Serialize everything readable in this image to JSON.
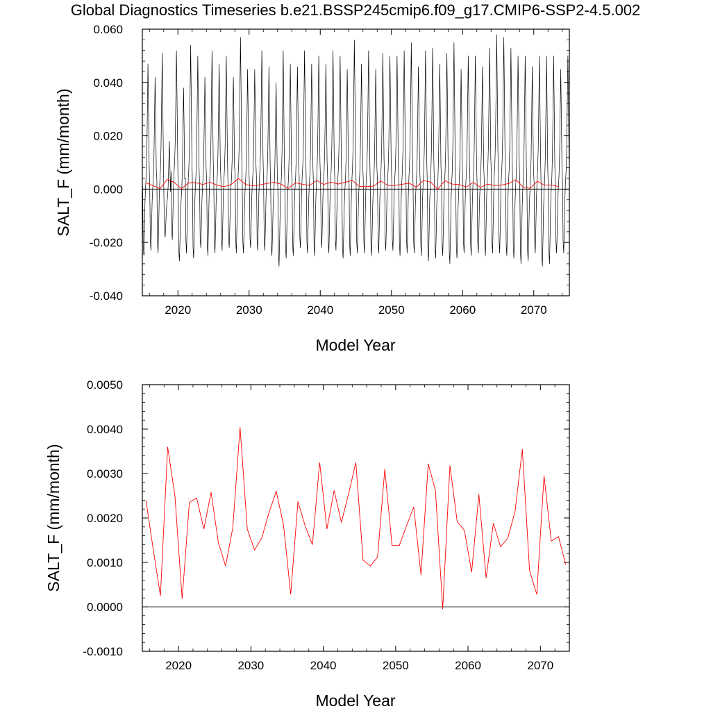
{
  "title": "Global Diagnostics Timeseries b.e21.BSSP245cmip6.f09_g17.CMIP6-SSP2-4.5.002",
  "colors": {
    "monthly": "#000000",
    "annual": "#ff0000",
    "zero_line": "#000000"
  },
  "chart_data": [
    {
      "type": "line",
      "xlabel": "Model Year",
      "ylabel": "SALT_F (mm/month)",
      "xlim": [
        2015,
        2075
      ],
      "ylim": [
        -0.04,
        0.06
      ],
      "xticks": [
        2020,
        2030,
        2040,
        2050,
        2060,
        2070
      ],
      "xtick_labels": [
        "2020",
        "2030",
        "2040",
        "2050",
        "2060",
        "2070"
      ],
      "yticks": [
        -0.04,
        -0.02,
        0.0,
        0.02,
        0.04,
        0.06
      ],
      "ytick_labels": [
        "-0.040",
        "-0.020",
        "0.000",
        "0.020",
        "0.040",
        "0.060"
      ],
      "monthly_series": {
        "start_year": 2015,
        "months_per_year": 12,
        "seasonal_cycle": [
          0.002,
          -0.02,
          -0.024,
          -0.015,
          -0.004,
          0.002,
          0.006,
          0.014,
          0.03,
          0.048,
          0.03,
          0.01
        ],
        "yearly_peaks": [
          0.047,
          0.042,
          0.051,
          0.018,
          0.052,
          0.038,
          0.054,
          0.05,
          0.042,
          0.052,
          0.047,
          0.05,
          0.042,
          0.057,
          0.045,
          0.045,
          0.052,
          0.046,
          0.04,
          0.052,
          0.047,
          0.046,
          0.052,
          0.047,
          0.05,
          0.047,
          0.052,
          0.05,
          0.045,
          0.056,
          0.047,
          0.052,
          0.045,
          0.051,
          0.05,
          0.05,
          0.052,
          0.055,
          0.046,
          0.052,
          0.053,
          0.047,
          0.051,
          0.055,
          0.045,
          0.05,
          0.05,
          0.046,
          0.053,
          0.058,
          0.057,
          0.053,
          0.05,
          0.05,
          0.046,
          0.05,
          0.05,
          0.05,
          0.045,
          0.05
        ],
        "yearly_troughs": [
          -0.025,
          -0.023,
          -0.024,
          -0.018,
          -0.019,
          -0.027,
          -0.024,
          -0.026,
          -0.022,
          -0.025,
          -0.024,
          -0.023,
          -0.022,
          -0.024,
          -0.024,
          -0.022,
          -0.023,
          -0.023,
          -0.025,
          -0.029,
          -0.026,
          -0.025,
          -0.022,
          -0.024,
          -0.025,
          -0.022,
          -0.024,
          -0.023,
          -0.026,
          -0.025,
          -0.024,
          -0.024,
          -0.025,
          -0.024,
          -0.023,
          -0.023,
          -0.025,
          -0.024,
          -0.024,
          -0.025,
          -0.027,
          -0.026,
          -0.025,
          -0.028,
          -0.026,
          -0.024,
          -0.025,
          -0.024,
          -0.025,
          -0.024,
          -0.024,
          -0.025,
          -0.026,
          -0.028,
          -0.027,
          -0.024,
          -0.029,
          -0.028,
          -0.024,
          -0.024
        ]
      },
      "annual_series": {
        "x": [
          2015.5,
          2016.5,
          2017.5,
          2018.5,
          2019.5,
          2020.5,
          2021.5,
          2022.5,
          2023.5,
          2024.5,
          2025.5,
          2026.5,
          2027.5,
          2028.5,
          2029.5,
          2030.5,
          2031.5,
          2032.5,
          2033.5,
          2034.5,
          2035.5,
          2036.5,
          2037.5,
          2038.5,
          2039.5,
          2040.5,
          2041.5,
          2042.5,
          2043.5,
          2044.5,
          2045.5,
          2046.5,
          2047.5,
          2048.5,
          2049.5,
          2050.5,
          2051.5,
          2052.5,
          2053.5,
          2054.5,
          2055.5,
          2056.5,
          2057.5,
          2058.5,
          2059.5,
          2060.5,
          2061.5,
          2062.5,
          2063.5,
          2064.5,
          2065.5,
          2066.5,
          2067.5,
          2068.5,
          2069.5,
          2070.5,
          2071.5,
          2072.5,
          2073.5
        ],
        "values": [
          0.0024,
          0.0013,
          0.00025,
          0.0036,
          0.0025,
          0.00018,
          0.00235,
          0.00245,
          0.00175,
          0.00258,
          0.00145,
          0.00092,
          0.00178,
          0.00404,
          0.00175,
          0.00128,
          0.00155,
          0.00212,
          0.0026,
          0.00185,
          0.00028,
          0.00237,
          0.00182,
          0.0014,
          0.00325,
          0.00175,
          0.00262,
          0.0019,
          0.00255,
          0.00325,
          0.00105,
          0.00092,
          0.00112,
          0.0031,
          0.00138,
          0.00138,
          0.00182,
          0.00225,
          0.00072,
          0.00322,
          0.00262,
          -5e-05,
          0.00318,
          0.00192,
          0.00172,
          0.00078,
          0.00253,
          0.00065,
          0.00188,
          0.00135,
          0.00155,
          0.00215,
          0.00355,
          0.00082,
          0.00028,
          0.00295,
          0.00148,
          0.00158,
          0.00095
        ]
      }
    },
    {
      "type": "line",
      "xlabel": "Model Year",
      "ylabel": "SALT_F (mm/month)",
      "xlim": [
        2015,
        2074
      ],
      "ylim": [
        -0.001,
        0.005
      ],
      "xticks": [
        2020,
        2030,
        2040,
        2050,
        2060,
        2070
      ],
      "xtick_labels": [
        "2020",
        "2030",
        "2040",
        "2050",
        "2060",
        "2070"
      ],
      "yticks": [
        -0.001,
        0.0,
        0.001,
        0.002,
        0.003,
        0.004,
        0.005
      ],
      "ytick_labels": [
        "-0.0010",
        "0.0000",
        "0.0010",
        "0.0020",
        "0.0030",
        "0.0040",
        "0.0050"
      ],
      "annual_series_ref": "chart_data.0.annual_series"
    }
  ]
}
